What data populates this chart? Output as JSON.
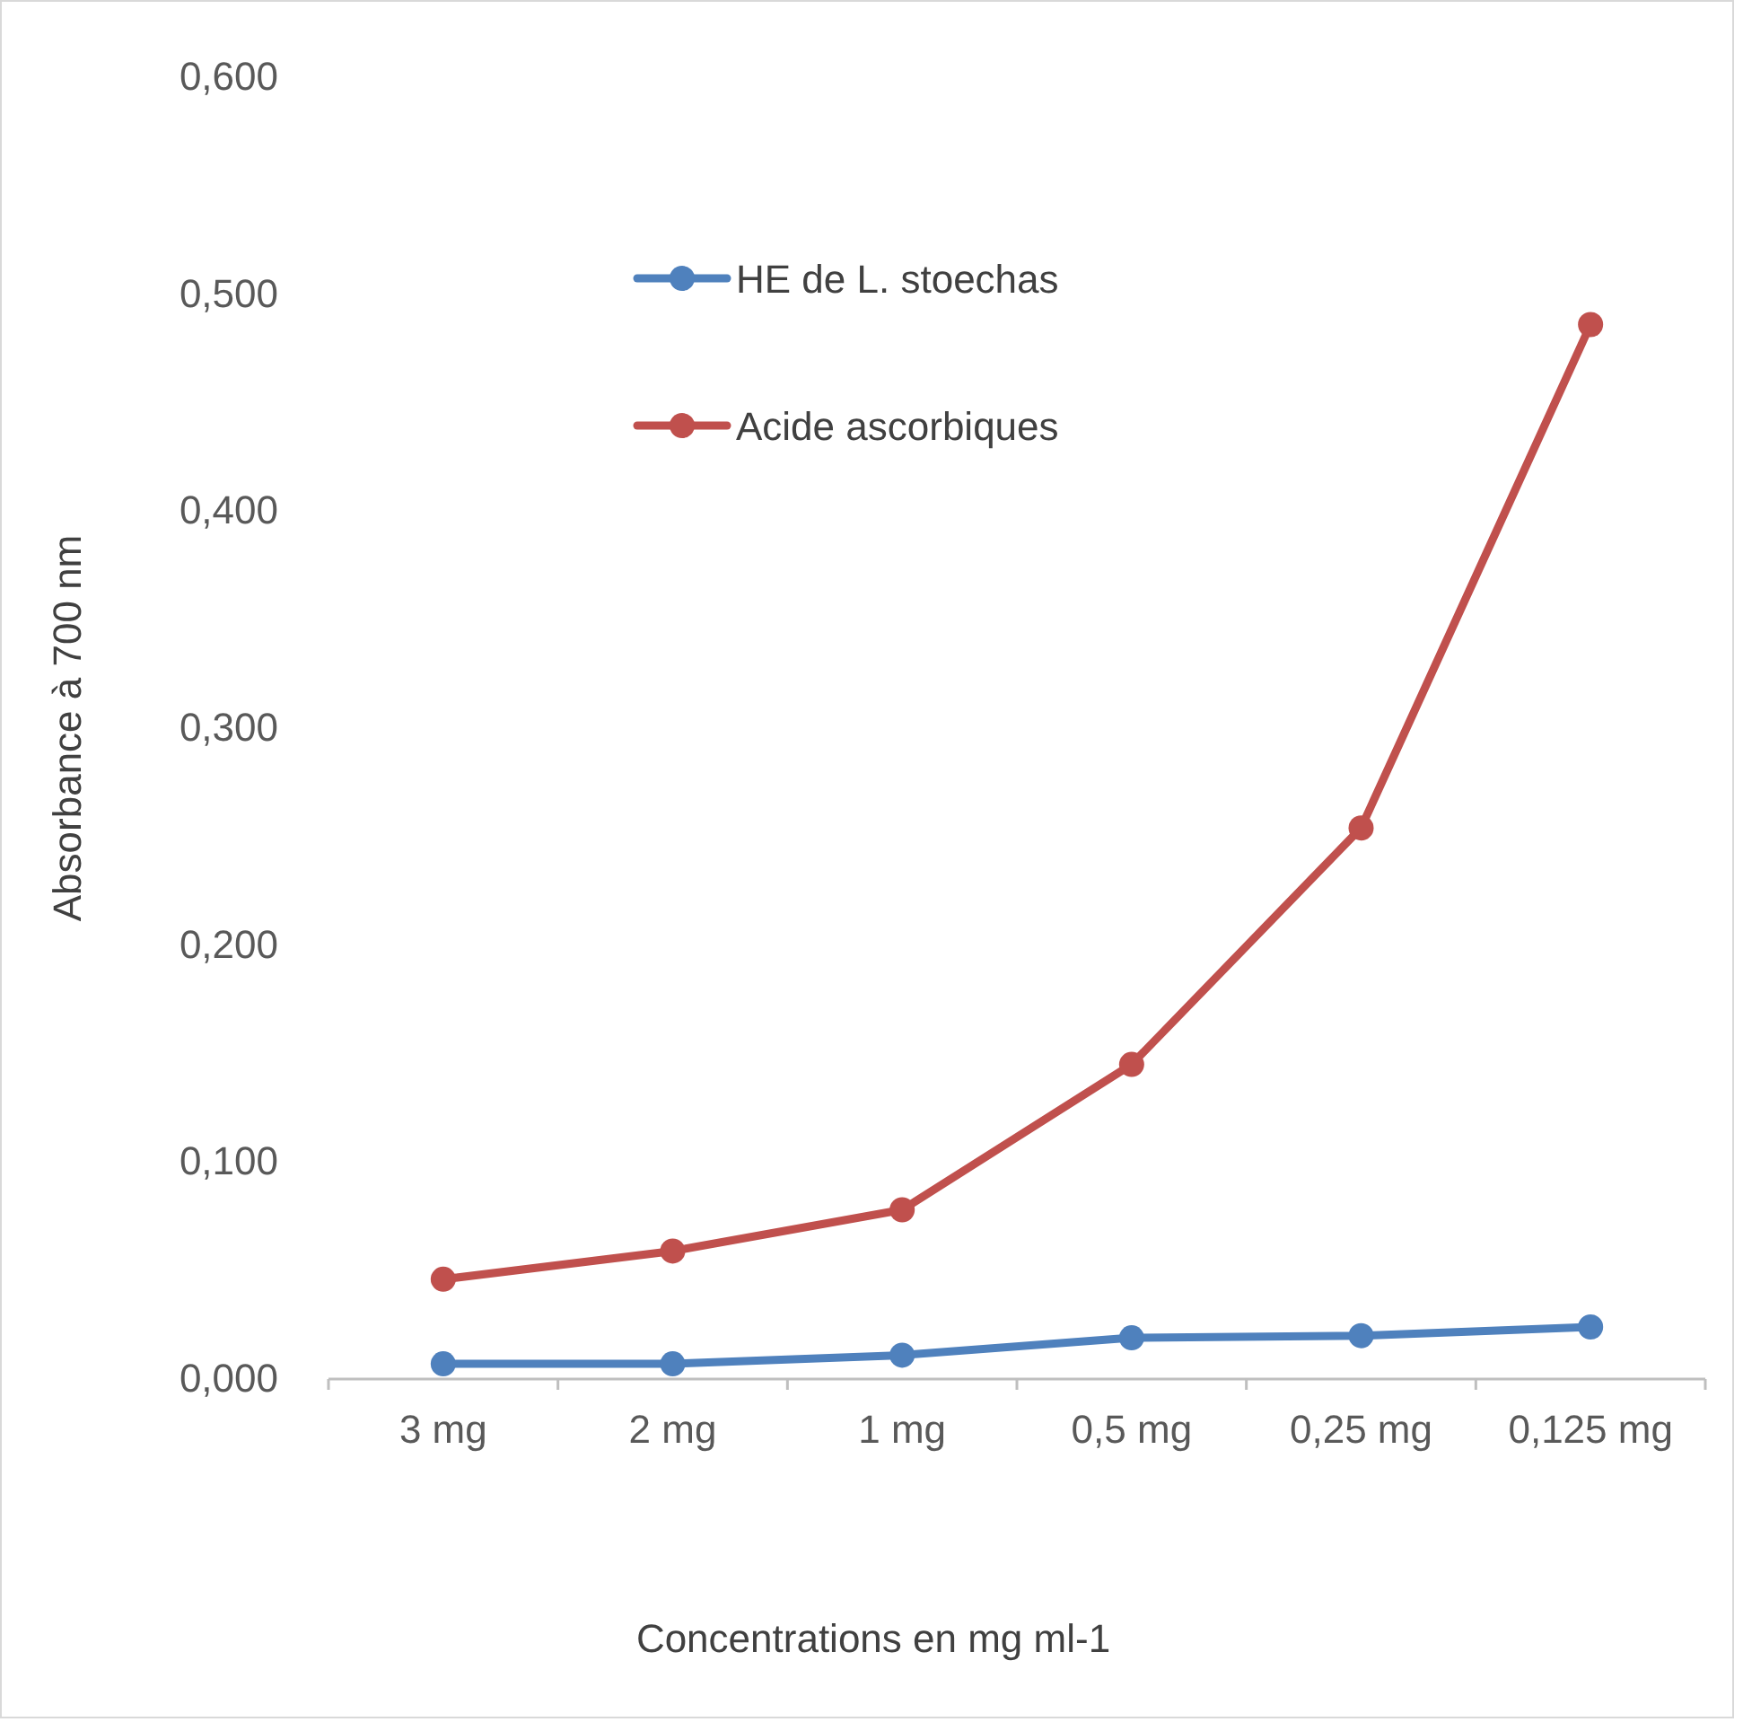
{
  "chart_data": {
    "type": "line",
    "xlabel": "Concentrations en mg ml-1",
    "ylabel": "Absorbance à 700 nm",
    "categories": [
      "3 mg",
      "2 mg",
      "1 mg",
      "0,5 mg",
      "0,25 mg",
      "0,125 mg"
    ],
    "series": [
      {
        "name": "HE de L. stoechas",
        "color": "#4f81bd",
        "values": [
          0.007,
          0.007,
          0.011,
          0.019,
          0.02,
          0.024
        ]
      },
      {
        "name": "Acide ascorbiques",
        "color": "#c0504d",
        "values": [
          0.046,
          0.059,
          0.078,
          0.145,
          0.254,
          0.486
        ]
      }
    ],
    "ylim": [
      0,
      0.6
    ],
    "yticks": [
      {
        "value": 0,
        "label": "0,000"
      },
      {
        "value": 0.1,
        "label": "0,100"
      },
      {
        "value": 0.2,
        "label": "0,200"
      },
      {
        "value": 0.3,
        "label": "0,300"
      },
      {
        "value": 0.4,
        "label": "0,400"
      },
      {
        "value": 0.5,
        "label": "0,500"
      },
      {
        "value": 0.6,
        "label": "0,600"
      }
    ],
    "grid": false,
    "legend": "top",
    "marker": "circle",
    "line_style": "solid"
  }
}
